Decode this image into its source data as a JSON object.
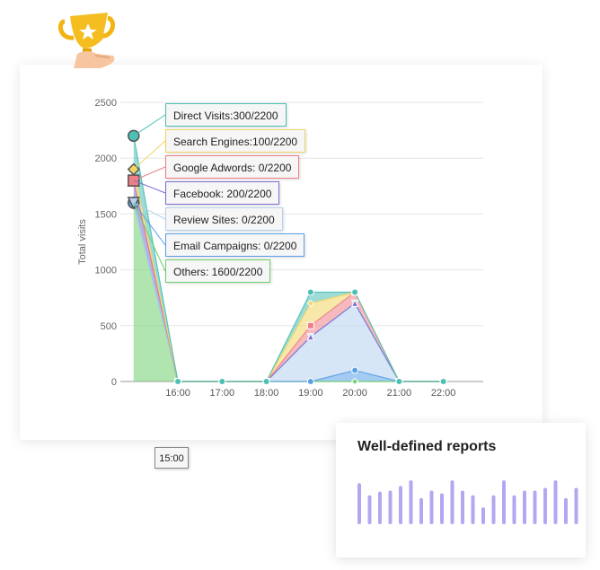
{
  "chart_data": {
    "type": "area",
    "ylabel": "Total visits",
    "xlabel": "",
    "ylim": [
      0,
      2500
    ],
    "yticks": [
      0,
      500,
      1000,
      1500,
      2000,
      2500
    ],
    "xlim": [
      14.7,
      22.9
    ],
    "xticks": [
      {
        "label": "16:00",
        "x": 16
      },
      {
        "label": "17:00",
        "x": 17
      },
      {
        "label": "18:00",
        "x": 18
      },
      {
        "label": "19:00",
        "x": 19
      },
      {
        "label": "20:00",
        "x": 20
      },
      {
        "label": "21:00",
        "x": 21
      },
      {
        "label": "22:00",
        "x": 22
      }
    ],
    "hover_label": "15:00",
    "x": [
      15,
      16,
      17,
      18,
      19,
      20,
      21,
      22
    ],
    "grid": true,
    "series": [
      {
        "name": "Others",
        "color": "#6fcf6f",
        "marker": "diamond",
        "values": [
          1600,
          0,
          0,
          0,
          0,
          0,
          0,
          0
        ]
      },
      {
        "name": "Email Campaigns",
        "color": "#5aa0e6",
        "marker": "circle",
        "values": [
          0,
          0,
          0,
          0,
          0,
          100,
          0,
          0
        ]
      },
      {
        "name": "Review Sites",
        "color": "#b5d2ee",
        "marker": "triangle-down",
        "values": [
          0,
          0,
          0,
          0,
          400,
          600,
          0,
          0
        ]
      },
      {
        "name": "Facebook",
        "color": "#7b6fd1",
        "marker": "triangle",
        "values": [
          200,
          0,
          0,
          0,
          0,
          0,
          0,
          0
        ]
      },
      {
        "name": "Google Adwords",
        "color": "#ef7f86",
        "marker": "square",
        "values": [
          0,
          0,
          0,
          0,
          100,
          100,
          0,
          0
        ]
      },
      {
        "name": "Search Engines",
        "color": "#f0d664",
        "marker": "diamond",
        "values": [
          100,
          0,
          0,
          0,
          200,
          0,
          0,
          0
        ]
      },
      {
        "name": "Direct Visits",
        "color": "#4dc0b5",
        "marker": "circle",
        "values": [
          300,
          0,
          0,
          0,
          100,
          0,
          0,
          0
        ]
      }
    ],
    "tooltips": [
      {
        "text": "Direct Visits:300/2200",
        "border": "#4dc0b5"
      },
      {
        "text": "Search Engines:100/2200",
        "border": "#f0d664"
      },
      {
        "text": "Google Adwords: 0/2200",
        "border": "#ef7f86"
      },
      {
        "text": "Facebook: 200/2200",
        "border": "#7b6fd1"
      },
      {
        "text": "Review Sites: 0/2200",
        "border": "#b5d2ee"
      },
      {
        "text": "Email Campaigns: 0/2200",
        "border": "#5aa0e6"
      },
      {
        "text": "Others: 1600/2200",
        "border": "#6fcf6f"
      }
    ]
  },
  "report": {
    "title": "Well-defined reports",
    "bar_color": "#b3a7f2",
    "bars": [
      0.88,
      0.62,
      0.7,
      0.72,
      0.82,
      0.94,
      0.56,
      0.72,
      0.66,
      0.94,
      0.72,
      0.62,
      0.36,
      0.62,
      0.94,
      0.62,
      0.72,
      0.72,
      0.78,
      0.94,
      0.56,
      0.78
    ]
  },
  "icons": {
    "badge": "trophy-hand-icon"
  }
}
